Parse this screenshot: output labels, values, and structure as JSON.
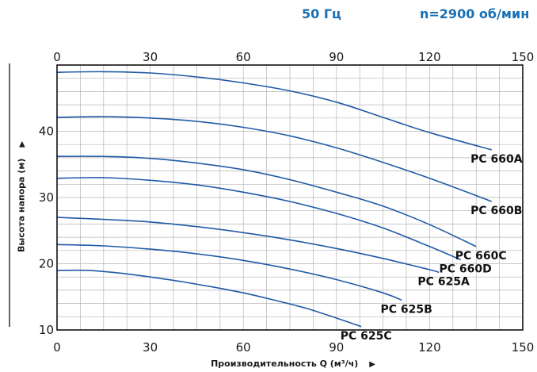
{
  "header": {
    "frequency": "50 Гц",
    "speed": "n=2900 об/мин"
  },
  "colors": {
    "curve": "#1f5aa6",
    "grid": "#b4b4b4",
    "frame": "#000000",
    "header": "#1a6fb5"
  },
  "chart_data": {
    "type": "line",
    "title": "",
    "xlabel": "Производительность Q (м³/ч)",
    "ylabel": "Высота напора (м)",
    "xlim": [
      0,
      150
    ],
    "ylim": [
      10,
      50
    ],
    "x_ticks": [
      0,
      30,
      60,
      90,
      120,
      150
    ],
    "y_ticks": [
      10,
      20,
      30,
      40
    ],
    "grid": true,
    "series": [
      {
        "name": "PC 660A",
        "x": [
          0,
          15,
          30,
          45,
          60,
          75,
          90,
          105,
          120,
          140
        ],
        "y": [
          48.9,
          49.0,
          48.8,
          48.2,
          47.3,
          46.1,
          44.4,
          42.1,
          39.8,
          37.2
        ]
      },
      {
        "name": "PC 660B",
        "x": [
          0,
          15,
          30,
          45,
          60,
          75,
          90,
          105,
          120,
          140
        ],
        "y": [
          42.1,
          42.2,
          42.0,
          41.5,
          40.6,
          39.3,
          37.5,
          35.3,
          32.9,
          29.4
        ]
      },
      {
        "name": "PC 660C",
        "x": [
          0,
          15,
          30,
          45,
          60,
          75,
          90,
          105,
          120,
          135
        ],
        "y": [
          36.2,
          36.2,
          35.9,
          35.2,
          34.2,
          32.7,
          30.8,
          28.7,
          25.9,
          22.6
        ]
      },
      {
        "name": "PC 660D",
        "x": [
          0,
          15,
          30,
          45,
          60,
          75,
          90,
          105,
          120,
          130
        ],
        "y": [
          32.9,
          33.0,
          32.6,
          31.9,
          30.8,
          29.4,
          27.6,
          25.4,
          22.6,
          20.6
        ]
      },
      {
        "name": "PC 625A",
        "x": [
          0,
          15,
          30,
          45,
          60,
          75,
          90,
          105,
          120,
          123
        ],
        "y": [
          27.0,
          26.7,
          26.3,
          25.6,
          24.7,
          23.6,
          22.3,
          20.8,
          19.1,
          18.7
        ]
      },
      {
        "name": "PC 625B",
        "x": [
          0,
          15,
          30,
          45,
          60,
          75,
          90,
          105,
          111
        ],
        "y": [
          22.9,
          22.7,
          22.2,
          21.5,
          20.5,
          19.2,
          17.6,
          15.6,
          14.5
        ]
      },
      {
        "name": "PC 625C",
        "x": [
          0,
          10,
          20,
          30,
          40,
          50,
          60,
          70,
          80,
          90,
          98
        ],
        "y": [
          19.0,
          19.0,
          18.6,
          18.0,
          17.3,
          16.5,
          15.6,
          14.5,
          13.3,
          11.8,
          10.5
        ]
      }
    ]
  }
}
